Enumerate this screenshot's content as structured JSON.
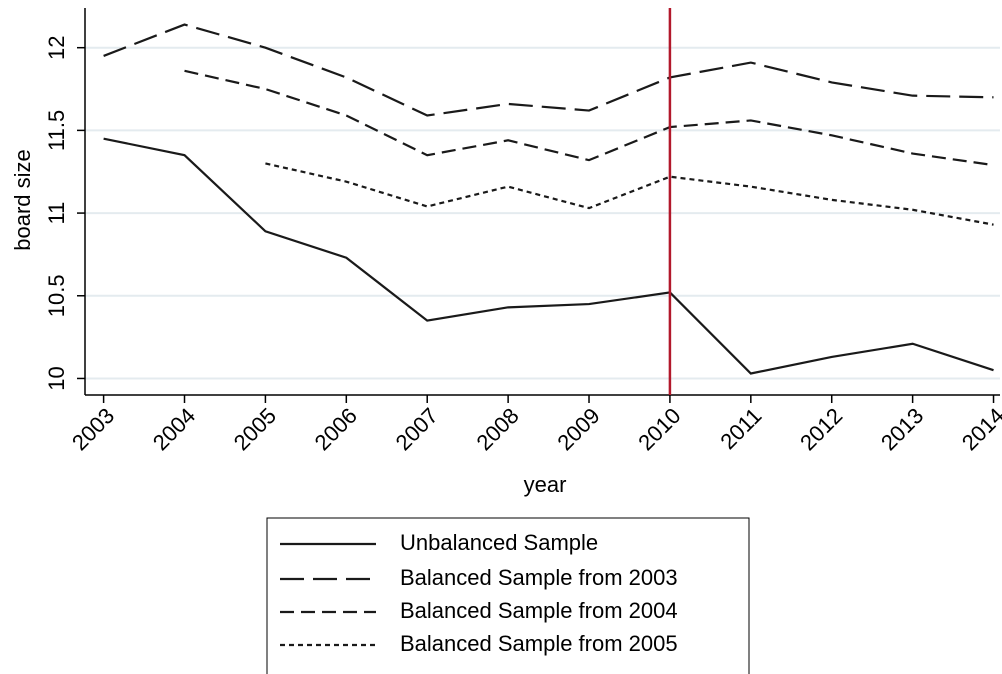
{
  "chart_data": {
    "type": "line",
    "x_label": "year",
    "y_label": "board size",
    "x": [
      2003,
      2004,
      2005,
      2006,
      2007,
      2008,
      2009,
      2010,
      2011,
      2012,
      2013,
      2014
    ],
    "xlim": [
      2002.77,
      2014.08
    ],
    "xticks": [
      2003,
      2004,
      2005,
      2006,
      2007,
      2008,
      2009,
      2010,
      2011,
      2012,
      2013,
      2014
    ],
    "ylim": [
      9.9,
      12.24
    ],
    "yticks": [
      10,
      10.5,
      11,
      11.5,
      12
    ],
    "grid": true,
    "reference_line": {
      "x": 2010,
      "color": "#b2182b"
    },
    "series": [
      {
        "name": "Unbalanced Sample",
        "color": "#1a1a1a",
        "style": "solid",
        "values": [
          11.45,
          11.35,
          10.89,
          10.73,
          10.35,
          10.43,
          10.45,
          10.52,
          10.03,
          10.13,
          10.21,
          10.05
        ]
      },
      {
        "name": "Balanced Sample from 2003",
        "color": "#1a1a1a",
        "style": "long-dash",
        "values": [
          11.95,
          12.14,
          12.0,
          11.82,
          11.59,
          11.66,
          11.62,
          11.82,
          11.91,
          11.79,
          11.71,
          11.7
        ]
      },
      {
        "name": "Balanced Sample from 2004",
        "color": "#1a1a1a",
        "style": "dash",
        "values": [
          null,
          11.86,
          11.75,
          11.59,
          11.35,
          11.44,
          11.32,
          11.52,
          11.56,
          11.47,
          11.36,
          11.29
        ]
      },
      {
        "name": "Balanced Sample from 2005",
        "color": "#1a1a1a",
        "style": "short-dash",
        "values": [
          null,
          null,
          11.3,
          11.19,
          11.04,
          11.16,
          11.03,
          11.22,
          11.16,
          11.08,
          11.02,
          10.93
        ]
      }
    ]
  }
}
